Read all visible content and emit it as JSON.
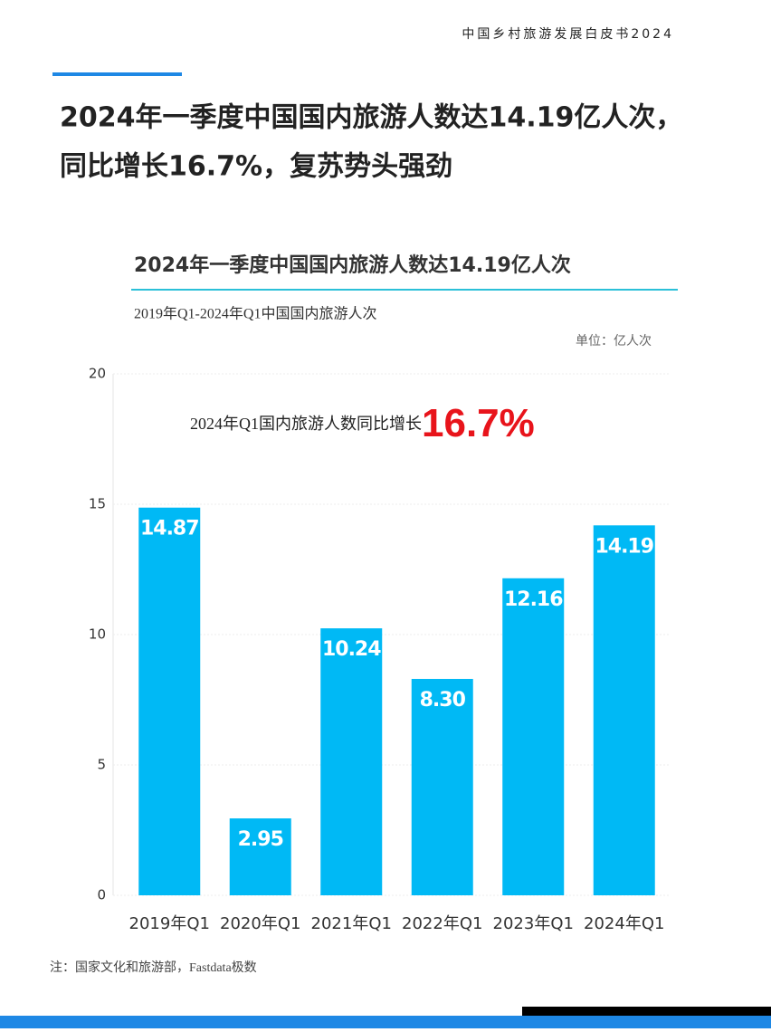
{
  "header": {
    "report": "中国乡村旅游发展白皮书2024",
    "headline": [
      "2024年一季度中国国内旅游人数达14.19亿人次，",
      "同比增长16.7%，复苏势头强劲"
    ]
  },
  "chart_data": {
    "type": "bar",
    "title": "2024年一季度中国国内旅游人数达14.19亿人次",
    "subtitle": "2019年Q1-2024年Q1中国国内旅游人次",
    "unit": "单位：亿人次",
    "annotation": "2024年Q1国内旅游人数同比增长",
    "annotation_highlight": "16.7%",
    "categories": [
      "2019年Q1",
      "2020年Q1",
      "2021年Q1",
      "2022年Q1",
      "2023年Q1",
      "2024年Q1"
    ],
    "values": [
      14.87,
      2.95,
      10.24,
      8.3,
      12.16,
      14.19
    ],
    "value_labels": [
      "14.87",
      "2.95",
      "10.24",
      "8.30",
      "12.16",
      "14.19"
    ],
    "color": "#00b9f5",
    "ylim": [
      0,
      20
    ],
    "yticks": [
      0,
      5,
      10,
      15,
      20
    ],
    "grid": true
  },
  "footnote": "注：国家文化和旅游部，Fastdata极数"
}
